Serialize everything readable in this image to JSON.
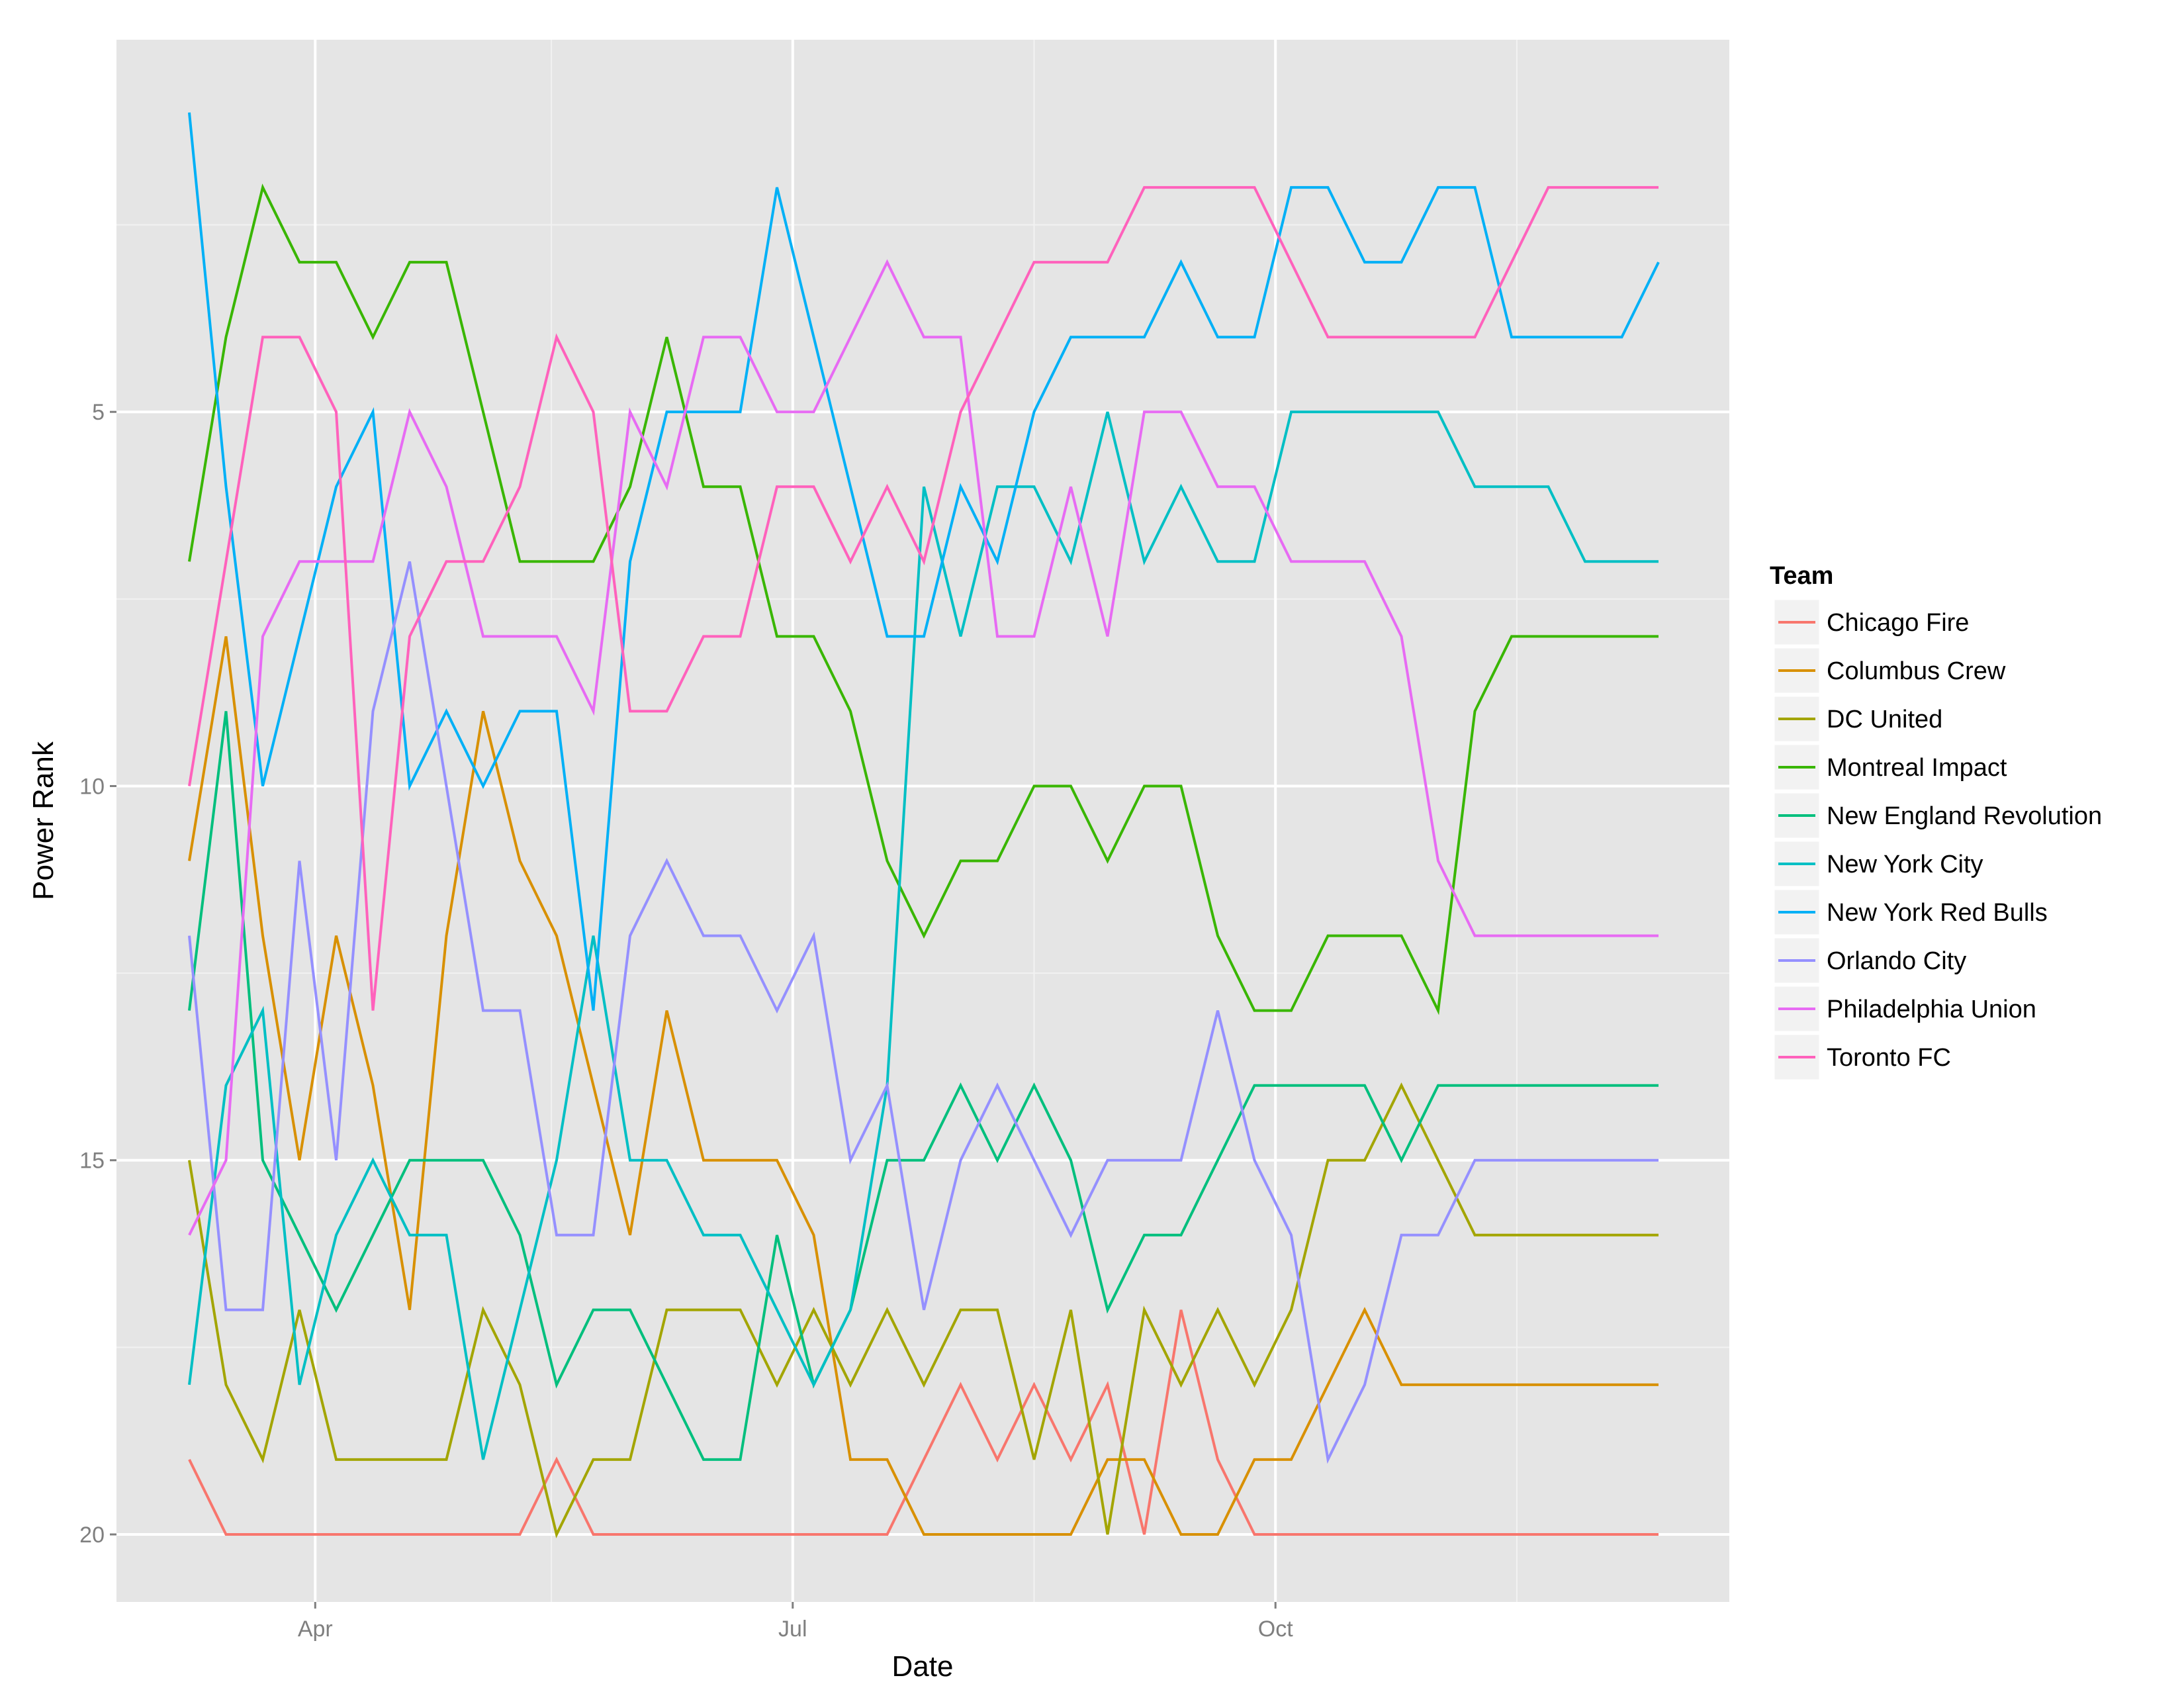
{
  "chart_data": {
    "type": "line",
    "title": "",
    "xlabel": "Date",
    "ylabel": "Power Rank",
    "x": [
      "2015-03-08",
      "2015-03-15",
      "2015-03-22",
      "2015-03-29",
      "2015-04-05",
      "2015-04-12",
      "2015-04-19",
      "2015-04-26",
      "2015-05-03",
      "2015-05-10",
      "2015-05-17",
      "2015-05-24",
      "2015-05-31",
      "2015-06-07",
      "2015-06-14",
      "2015-06-21",
      "2015-06-28",
      "2015-07-05",
      "2015-07-12",
      "2015-07-19",
      "2015-07-26",
      "2015-08-02",
      "2015-08-09",
      "2015-08-16",
      "2015-08-23",
      "2015-08-30",
      "2015-09-06",
      "2015-09-13",
      "2015-09-20",
      "2015-09-27",
      "2015-10-04",
      "2015-10-11",
      "2015-10-18",
      "2015-10-25",
      "2015-11-01",
      "2015-11-08",
      "2015-11-15",
      "2015-11-22",
      "2015-11-29",
      "2015-12-06",
      "2015-12-13"
    ],
    "x_ticks": [
      "Apr",
      "Jul",
      "Oct"
    ],
    "y_ticks": [
      5,
      10,
      15,
      20
    ],
    "ylim": [
      21,
      0
    ],
    "y_reversed": true,
    "legend_title": "Team",
    "legend_position": "right",
    "grid": true,
    "series": [
      {
        "name": "Chicago Fire",
        "color": "#F8766D",
        "values": [
          19,
          20,
          20,
          20,
          20,
          20,
          20,
          20,
          20,
          20,
          19,
          20,
          20,
          20,
          20,
          20,
          20,
          20,
          20,
          20,
          19,
          18,
          19,
          18,
          19,
          18,
          20,
          17,
          19,
          20,
          20,
          20,
          20,
          20,
          20,
          20,
          20,
          20,
          20,
          20,
          20
        ]
      },
      {
        "name": "Columbus Crew",
        "color": "#D89000",
        "values": [
          11,
          8,
          12,
          15,
          12,
          14,
          17,
          12,
          9,
          11,
          12,
          14,
          16,
          13,
          15,
          15,
          15,
          16,
          19,
          19,
          20,
          20,
          20,
          20,
          20,
          19,
          19,
          20,
          20,
          19,
          19,
          18,
          17,
          18,
          18,
          18,
          18,
          18,
          18,
          18,
          18
        ]
      },
      {
        "name": "DC United",
        "color": "#A3A500",
        "values": [
          15,
          18,
          19,
          17,
          19,
          19,
          19,
          19,
          17,
          18,
          20,
          19,
          19,
          17,
          17,
          17,
          18,
          17,
          18,
          17,
          18,
          17,
          17,
          19,
          17,
          20,
          17,
          18,
          17,
          18,
          17,
          15,
          15,
          14,
          15,
          16,
          16,
          16,
          16,
          16,
          16
        ]
      },
      {
        "name": "Montreal Impact",
        "color": "#39B600",
        "values": [
          7,
          4,
          2,
          3,
          3,
          4,
          3,
          3,
          5,
          7,
          7,
          7,
          6,
          4,
          6,
          6,
          8,
          8,
          9,
          11,
          12,
          11,
          11,
          10,
          10,
          11,
          10,
          10,
          12,
          13,
          13,
          12,
          12,
          12,
          13,
          9,
          8,
          8,
          8,
          8,
          8
        ]
      },
      {
        "name": "New England Revolution",
        "color": "#00BF7D",
        "values": [
          13,
          9,
          15,
          16,
          17,
          16,
          15,
          15,
          15,
          16,
          18,
          17,
          17,
          18,
          19,
          19,
          16,
          18,
          17,
          15,
          15,
          14,
          15,
          14,
          15,
          17,
          16,
          16,
          15,
          14,
          14,
          14,
          14,
          15,
          14,
          14,
          14,
          14,
          14,
          14,
          14
        ]
      },
      {
        "name": "New York City",
        "color": "#00BFC4",
        "values": [
          18,
          14,
          13,
          18,
          16,
          15,
          16,
          16,
          19,
          17,
          15,
          12,
          15,
          15,
          16,
          16,
          17,
          18,
          17,
          14,
          6,
          8,
          6,
          6,
          7,
          5,
          7,
          6,
          7,
          7,
          5,
          5,
          5,
          5,
          5,
          6,
          6,
          6,
          7,
          7,
          7
        ]
      },
      {
        "name": "New York Red Bulls",
        "color": "#00B0F6",
        "values": [
          1,
          6,
          10,
          8,
          6,
          5,
          10,
          9,
          10,
          9,
          9,
          13,
          7,
          5,
          5,
          5,
          2,
          4,
          6,
          8,
          8,
          6,
          7,
          5,
          4,
          4,
          4,
          3,
          4,
          4,
          2,
          2,
          3,
          3,
          2,
          2,
          4,
          4,
          4,
          4,
          3
        ]
      },
      {
        "name": "Orlando City",
        "color": "#9590FF",
        "values": [
          12,
          17,
          17,
          11,
          15,
          9,
          7,
          10,
          13,
          13,
          16,
          16,
          12,
          11,
          12,
          12,
          13,
          12,
          15,
          14,
          17,
          15,
          14,
          15,
          16,
          15,
          15,
          15,
          13,
          15,
          16,
          19,
          18,
          16,
          16,
          15,
          15,
          15,
          15,
          15,
          15
        ]
      },
      {
        "name": "Philadelphia Union",
        "color": "#E76BF3",
        "values": [
          16,
          15,
          8,
          7,
          7,
          7,
          5,
          6,
          8,
          8,
          8,
          9,
          5,
          6,
          4,
          4,
          5,
          5,
          4,
          3,
          4,
          4,
          8,
          8,
          6,
          8,
          5,
          5,
          6,
          6,
          7,
          7,
          7,
          8,
          11,
          12,
          12,
          12,
          12,
          12,
          12
        ]
      },
      {
        "name": "Toronto FC",
        "color": "#FF62BC",
        "values": [
          10,
          7,
          4,
          4,
          5,
          13,
          8,
          7,
          7,
          6,
          4,
          5,
          9,
          9,
          8,
          8,
          6,
          6,
          7,
          6,
          7,
          5,
          4,
          3,
          3,
          3,
          2,
          2,
          2,
          2,
          3,
          4,
          4,
          4,
          4,
          4,
          3,
          2,
          2,
          2,
          2
        ]
      }
    ]
  }
}
